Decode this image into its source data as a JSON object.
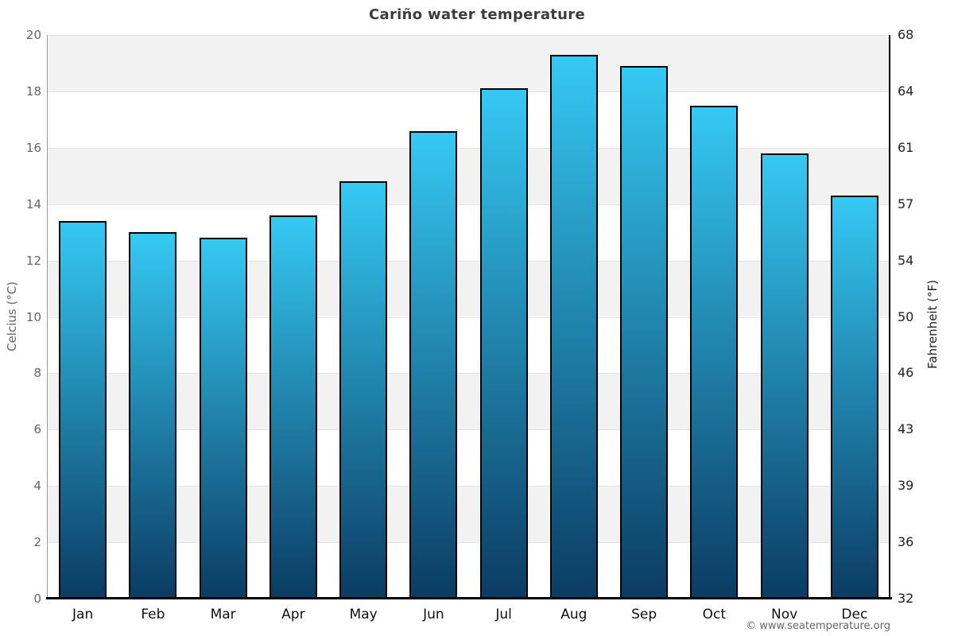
{
  "title": "Cariño water temperature",
  "axes": {
    "left_title": "Celcius (°C)",
    "right_title": "Fahrenheit (°F)"
  },
  "watermark": "© www.seatemperature.org",
  "colors": {
    "bar_gradient_top": "#35c9f3",
    "bar_gradient_bottom": "#0b3c63",
    "bar_border": "#000000",
    "band_fill": "#f2f2f2",
    "gridline": "#e2e2e2",
    "left_axis_line": "#999999",
    "right_axis_line": "#000000",
    "bottom_axis_line": "#000000",
    "title_text": "#3c3c3c",
    "left_labels": "#666666",
    "right_labels": "#222222",
    "month_labels": "#111111",
    "watermark_text": "#666666"
  },
  "chart_data": {
    "type": "bar",
    "title": "Cariño water temperature",
    "categories": [
      "Jan",
      "Feb",
      "Mar",
      "Apr",
      "May",
      "Jun",
      "Jul",
      "Aug",
      "Sep",
      "Oct",
      "Nov",
      "Dec"
    ],
    "values": [
      13.4,
      13.0,
      12.8,
      13.6,
      14.8,
      16.6,
      18.1,
      19.3,
      18.9,
      17.5,
      15.8,
      14.3
    ],
    "ylabel_left": "Celcius (°C)",
    "ylabel_right": "Fahrenheit (°F)",
    "ylim_left": [
      0,
      20
    ],
    "ylim_right": [
      32,
      68
    ],
    "ytick_step_left": 2,
    "yticks_left": [
      0,
      2,
      4,
      6,
      8,
      10,
      12,
      14,
      16,
      18,
      20
    ],
    "yticks_right": [
      32,
      36,
      39,
      43,
      46,
      50,
      54,
      57,
      61,
      64,
      68
    ],
    "grid": "alternating horizontal gray bands every 2°C",
    "legend": "none",
    "bar_gradient": [
      "#35c9f3",
      "#0b3c63"
    ]
  }
}
